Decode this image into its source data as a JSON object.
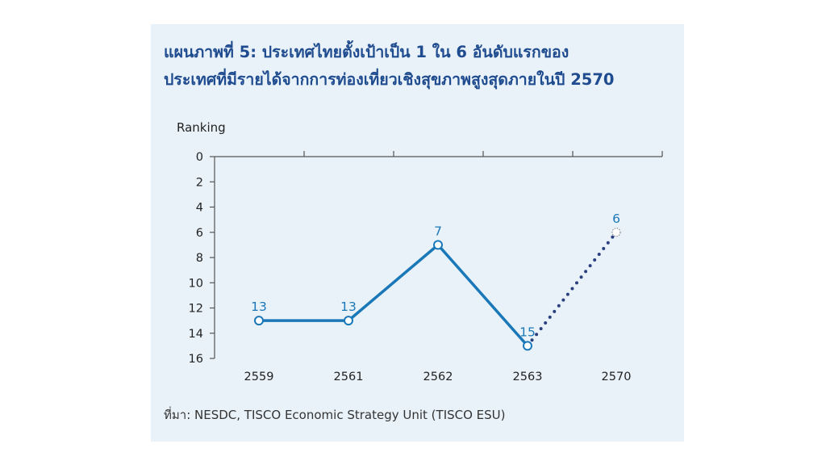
{
  "title": {
    "line1": "แผนภาพที่ 5: ประเทศไทยตั้งเป้าเป็น 1 ใน 6 อันดับแรกของ",
    "line2": "ประเทศที่มีรายได้จากการท่องเที่ยวเชิงสุขภาพสูงสุดภายในปี 2570"
  },
  "source": "ที่มา: NESDC, TISCO Economic Strategy Unit (TISCO ESU)",
  "colors": {
    "panel": "#e9f2f9",
    "title": "#1f4b8f",
    "line": "#1a78b8",
    "projection": "#2a3f7e",
    "label": "#1a78b8"
  },
  "chart_data": {
    "type": "line",
    "ylabel": "Ranking",
    "xlabel": "",
    "categories": [
      "2559",
      "2561",
      "2562",
      "2563",
      "2570"
    ],
    "ylim": [
      0,
      16
    ],
    "y_reversed": true,
    "yticks": [
      0,
      2,
      4,
      6,
      8,
      10,
      12,
      14,
      16
    ],
    "grid": false,
    "series": [
      {
        "style": "solid",
        "points": [
          {
            "x": "2559",
            "y": 13
          },
          {
            "x": "2561",
            "y": 13
          },
          {
            "x": "2562",
            "y": 7
          },
          {
            "x": "2563",
            "y": 15
          }
        ]
      },
      {
        "style": "dotted",
        "points": [
          {
            "x": "2563",
            "y": 15
          },
          {
            "x": "2570",
            "y": 6
          }
        ]
      }
    ],
    "data_labels": [
      {
        "x": "2559",
        "y": 13,
        "text": "13"
      },
      {
        "x": "2561",
        "y": 13,
        "text": "13"
      },
      {
        "x": "2562",
        "y": 7,
        "text": "7"
      },
      {
        "x": "2563",
        "y": 15,
        "text": "15"
      },
      {
        "x": "2570",
        "y": 6,
        "text": "6"
      }
    ]
  }
}
